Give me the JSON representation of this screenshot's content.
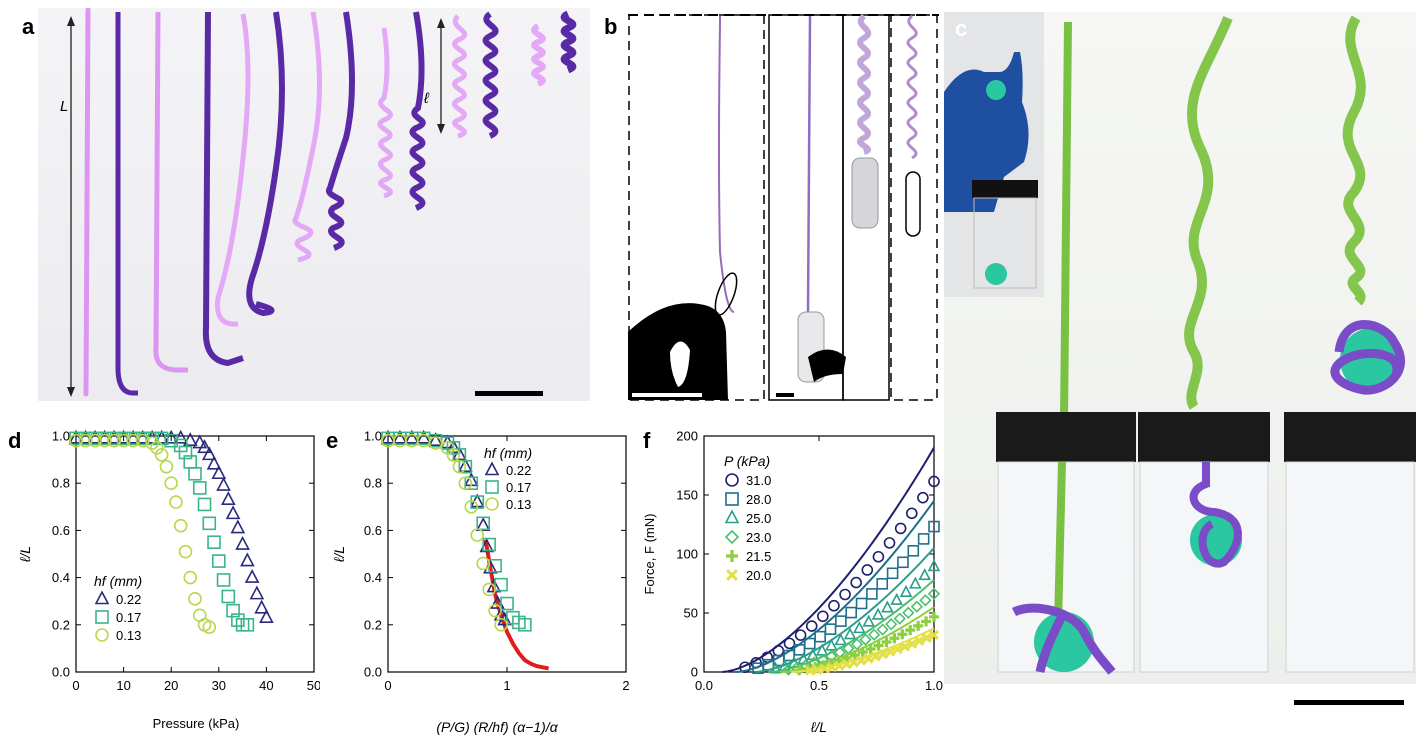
{
  "panels": {
    "a": {
      "letter": "a",
      "label_L": "L",
      "label_ell": "ℓ"
    },
    "b": {
      "letter": "b"
    },
    "c": {
      "letter": "c"
    },
    "d": {
      "letter": "d"
    },
    "e": {
      "letter": "e"
    },
    "f": {
      "letter": "f"
    }
  },
  "colors": {
    "h022": "#2a2a7a",
    "h017": "#3cb48a",
    "h013": "#b8d84a",
    "red": "#e21b1b",
    "light_purple": "#d58ef0",
    "dark_purple": "#5a2aa6",
    "green_rod": "#7ac043",
    "teal_ball": "#2ac7a0"
  },
  "chart_data": [
    {
      "id": "d",
      "type": "scatter",
      "xlabel": "Pressure (kPa)",
      "ylabel": "ℓ/L",
      "xlim": [
        0,
        50
      ],
      "ylim": [
        0,
        1.0
      ],
      "xticks": [
        "0",
        "10",
        "20",
        "30",
        "40",
        "50"
      ],
      "yticks": [
        "0.0",
        "0.2",
        "0.4",
        "0.6",
        "0.8",
        "1.0"
      ],
      "legend_title": "hf (mm)",
      "series": [
        {
          "name": "0.22",
          "marker": "triangle",
          "color": "#2a2a7a",
          "x": [
            0,
            2,
            4,
            6,
            8,
            10,
            12,
            14,
            16,
            18,
            20,
            22,
            24,
            26,
            27,
            28,
            29,
            30,
            31,
            32,
            33,
            34,
            35,
            36,
            37,
            38,
            39,
            40
          ],
          "y": [
            0.99,
            0.99,
            0.99,
            0.99,
            0.99,
            0.99,
            0.99,
            0.99,
            0.99,
            0.99,
            0.99,
            0.99,
            0.98,
            0.97,
            0.95,
            0.92,
            0.88,
            0.84,
            0.79,
            0.73,
            0.67,
            0.61,
            0.54,
            0.47,
            0.4,
            0.33,
            0.27,
            0.23
          ]
        },
        {
          "name": "0.17",
          "marker": "square",
          "color": "#3cb48a",
          "x": [
            0,
            2,
            4,
            6,
            8,
            10,
            12,
            14,
            16,
            18,
            20,
            22,
            23,
            24,
            25,
            26,
            27,
            28,
            29,
            30,
            31,
            32,
            33,
            34,
            35,
            36
          ],
          "y": [
            0.99,
            0.99,
            0.99,
            0.99,
            0.99,
            0.99,
            0.99,
            0.99,
            0.99,
            0.99,
            0.98,
            0.96,
            0.93,
            0.89,
            0.84,
            0.78,
            0.71,
            0.63,
            0.55,
            0.47,
            0.39,
            0.32,
            0.26,
            0.22,
            0.2,
            0.2
          ]
        },
        {
          "name": "0.13",
          "marker": "circle",
          "color": "#b8d84a",
          "x": [
            0,
            2,
            4,
            6,
            8,
            10,
            12,
            14,
            16,
            17,
            18,
            19,
            20,
            21,
            22,
            23,
            24,
            25,
            26,
            27,
            28
          ],
          "y": [
            0.98,
            0.98,
            0.98,
            0.98,
            0.98,
            0.98,
            0.98,
            0.98,
            0.97,
            0.95,
            0.92,
            0.87,
            0.8,
            0.72,
            0.62,
            0.51,
            0.4,
            0.31,
            0.24,
            0.2,
            0.19
          ]
        }
      ]
    },
    {
      "id": "e",
      "type": "scatter",
      "xlabel": "(P/G) (R/hf) (α−1)/α",
      "ylabel": "ℓ/L",
      "xlim": [
        0,
        2
      ],
      "ylim": [
        0,
        1.0
      ],
      "xticks": [
        "0",
        "1",
        "2"
      ],
      "yticks": [
        "0.0",
        "0.2",
        "0.4",
        "0.6",
        "0.8",
        "1.0"
      ],
      "legend_title": "hf (mm)",
      "series": [
        {
          "name": "0.22",
          "marker": "triangle",
          "color": "#2a2a7a",
          "x": [
            0,
            0.1,
            0.2,
            0.3,
            0.4,
            0.5,
            0.55,
            0.6,
            0.65,
            0.7,
            0.75,
            0.8,
            0.83,
            0.86,
            0.89,
            0.92,
            0.95,
            0.98
          ],
          "y": [
            0.99,
            0.99,
            0.99,
            0.99,
            0.98,
            0.97,
            0.95,
            0.92,
            0.87,
            0.81,
            0.72,
            0.62,
            0.53,
            0.44,
            0.36,
            0.29,
            0.24,
            0.22
          ]
        },
        {
          "name": "0.17",
          "marker": "square",
          "color": "#3cb48a",
          "x": [
            0,
            0.1,
            0.2,
            0.3,
            0.4,
            0.5,
            0.55,
            0.6,
            0.65,
            0.7,
            0.75,
            0.8,
            0.85,
            0.9,
            0.95,
            1.0,
            1.05,
            1.1,
            1.15
          ],
          "y": [
            0.99,
            0.99,
            0.99,
            0.99,
            0.98,
            0.97,
            0.95,
            0.92,
            0.87,
            0.8,
            0.72,
            0.63,
            0.54,
            0.45,
            0.37,
            0.29,
            0.23,
            0.21,
            0.2
          ]
        },
        {
          "name": "0.13",
          "marker": "circle",
          "color": "#b8d84a",
          "x": [
            0,
            0.1,
            0.2,
            0.3,
            0.4,
            0.5,
            0.55,
            0.6,
            0.65,
            0.7,
            0.75,
            0.8,
            0.85,
            0.9,
            0.95
          ],
          "y": [
            0.98,
            0.98,
            0.98,
            0.98,
            0.97,
            0.95,
            0.92,
            0.87,
            0.8,
            0.7,
            0.58,
            0.46,
            0.35,
            0.26,
            0.2
          ]
        }
      ],
      "fit_curve": {
        "color": "#e21b1b",
        "x": [
          0.82,
          0.86,
          0.9,
          0.95,
          1.0,
          1.05,
          1.1,
          1.15,
          1.2,
          1.25,
          1.3,
          1.35
        ],
        "y": [
          0.56,
          0.44,
          0.33,
          0.24,
          0.17,
          0.12,
          0.08,
          0.05,
          0.035,
          0.025,
          0.02,
          0.015
        ]
      }
    },
    {
      "id": "f",
      "type": "line",
      "xlabel": "ℓ/L",
      "ylabel": "Force, F (mN)",
      "xlim": [
        0,
        1.0
      ],
      "ylim": [
        0,
        200
      ],
      "xticks": [
        "0.0",
        "0.5",
        "1.0"
      ],
      "yticks": [
        "0",
        "50",
        "100",
        "150",
        "200"
      ],
      "legend_title": "P (kPa)",
      "series": [
        {
          "name": "31.0",
          "marker": "circle",
          "color": "#1f1f6e",
          "x0": 0.08,
          "F1": 190
        },
        {
          "name": "28.0",
          "marker": "square",
          "color": "#1f6e8a",
          "x0": 0.14,
          "F1": 145
        },
        {
          "name": "25.0",
          "marker": "triangle",
          "color": "#2a9e8a",
          "x0": 0.22,
          "F1": 105
        },
        {
          "name": "23.0",
          "marker": "diamond",
          "color": "#4cbf6e",
          "x0": 0.28,
          "F1": 78
        },
        {
          "name": "21.5",
          "marker": "plus",
          "color": "#8dcf3e",
          "x0": 0.33,
          "F1": 55
        },
        {
          "name": "20.0",
          "marker": "x",
          "color": "#e2e044",
          "x0": 0.38,
          "F1": 37
        }
      ]
    }
  ]
}
